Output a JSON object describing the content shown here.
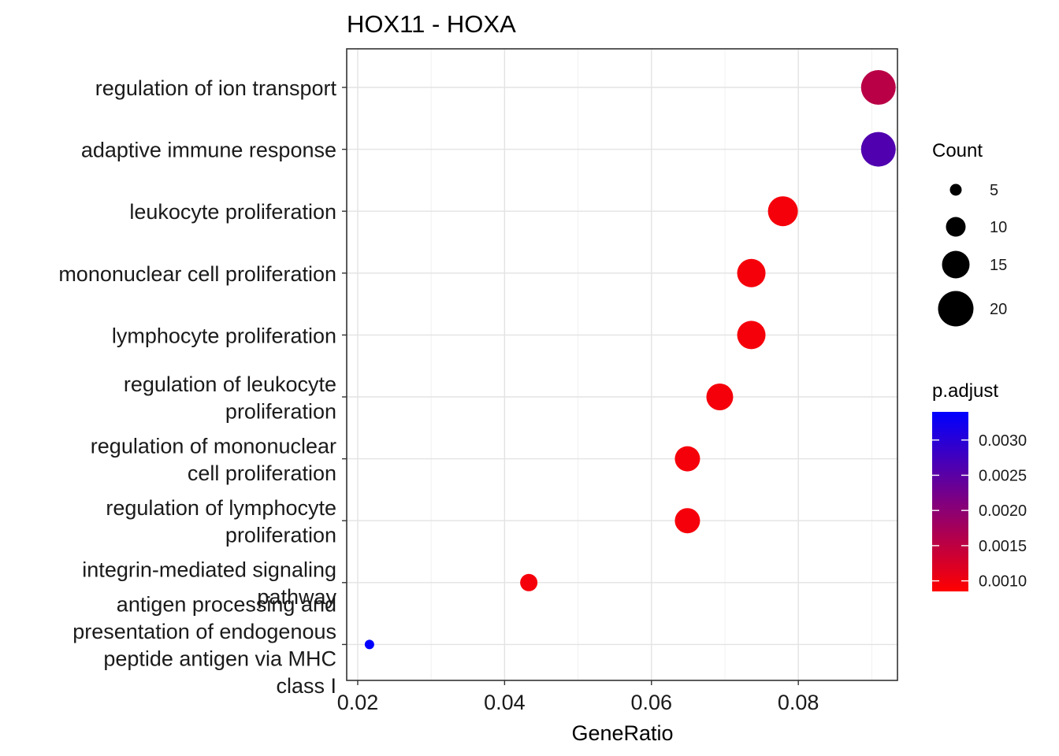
{
  "chart_data": {
    "type": "scatter",
    "title": "HOX11 - HOXA",
    "xlabel": "GeneRatio",
    "ylabel": "",
    "xlim": [
      0.0185,
      0.0935
    ],
    "x_ticks": [
      0.02,
      0.04,
      0.06,
      0.08
    ],
    "x_tick_labels": [
      "0.02",
      "0.04",
      "0.06",
      "0.08"
    ],
    "grid": true,
    "categories": [
      [
        "regulation of ion transport"
      ],
      [
        "adaptive immune response"
      ],
      [
        "leukocyte proliferation"
      ],
      [
        "mononuclear cell proliferation"
      ],
      [
        "lymphocyte proliferation"
      ],
      [
        "regulation of leukocyte",
        "proliferation"
      ],
      [
        "regulation of mononuclear",
        "cell proliferation"
      ],
      [
        "regulation of lymphocyte",
        "proliferation"
      ],
      [
        "integrin-mediated signaling",
        "pathway"
      ],
      [
        "antigen processing and",
        "presentation of endogenous",
        "peptide antigen via MHC",
        "class I"
      ]
    ],
    "points": [
      {
        "x": 0.0909,
        "count": 21,
        "p_adjust": 0.00155
      },
      {
        "x": 0.0909,
        "count": 21,
        "p_adjust": 0.0026
      },
      {
        "x": 0.0779,
        "count": 18,
        "p_adjust": 0.00095
      },
      {
        "x": 0.0736,
        "count": 17,
        "p_adjust": 0.00095
      },
      {
        "x": 0.0736,
        "count": 17,
        "p_adjust": 0.00095
      },
      {
        "x": 0.0693,
        "count": 16,
        "p_adjust": 0.00095
      },
      {
        "x": 0.0649,
        "count": 15,
        "p_adjust": 0.00095
      },
      {
        "x": 0.0649,
        "count": 15,
        "p_adjust": 0.00095
      },
      {
        "x": 0.0433,
        "count": 10,
        "p_adjust": 0.00095
      },
      {
        "x": 0.0216,
        "count": 5,
        "p_adjust": 0.0034
      }
    ],
    "size_legend": {
      "title": "Count",
      "values": [
        5,
        10,
        15,
        20
      ],
      "labels": [
        "5",
        "10",
        "15",
        "20"
      ],
      "position": "right"
    },
    "color_legend": {
      "title": "p.adjust",
      "range": [
        0.00085,
        0.0034
      ],
      "ticks": [
        0.001,
        0.0015,
        0.002,
        0.0025,
        0.003
      ],
      "tick_labels": [
        "0.0010",
        "0.0015",
        "0.0020",
        "0.0025",
        "0.0030"
      ],
      "low_color": "#ff0000",
      "high_color": "#0000ff",
      "position": "right"
    }
  }
}
